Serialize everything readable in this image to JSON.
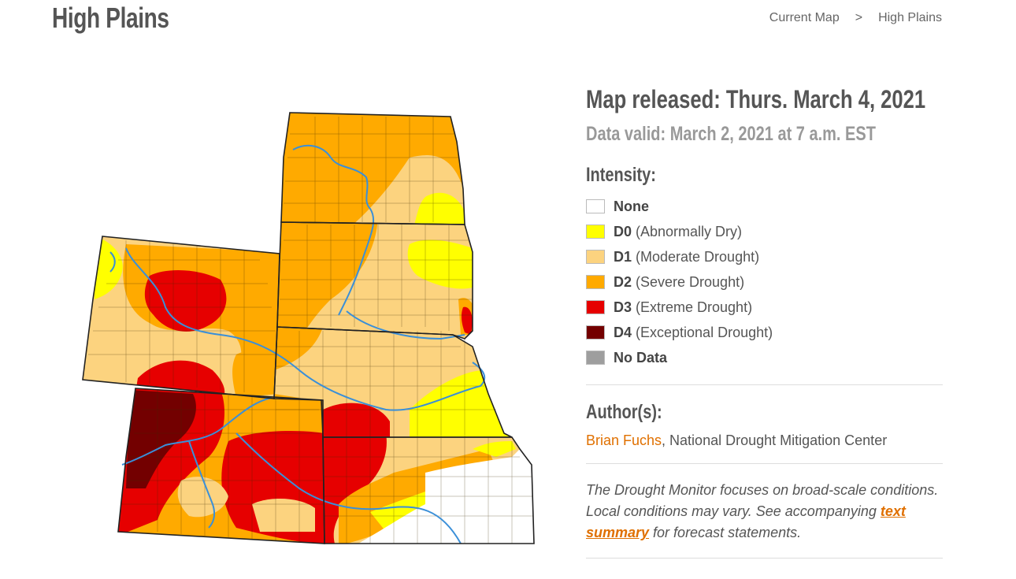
{
  "header": {
    "title": "High Plains",
    "breadcrumb": [
      {
        "label": "Current Map"
      },
      {
        "label": ">"
      },
      {
        "label": "High Plains"
      }
    ]
  },
  "info": {
    "released": "Map released: Thurs. March 4, 2021",
    "valid": "Data valid: March 2, 2021 at 7 a.m. EST",
    "intensity_title": "Intensity:",
    "legend": [
      {
        "code": "None",
        "desc": "",
        "color": "#ffffff"
      },
      {
        "code": "D0",
        "desc": "(Abnormally Dry)",
        "color": "#ffff00"
      },
      {
        "code": "D1",
        "desc": "(Moderate Drought)",
        "color": "#fcd37f"
      },
      {
        "code": "D2",
        "desc": "(Severe Drought)",
        "color": "#ffaa00"
      },
      {
        "code": "D3",
        "desc": "(Extreme Drought)",
        "color": "#e60000"
      },
      {
        "code": "D4",
        "desc": "(Exceptional Drought)",
        "color": "#730000"
      },
      {
        "code": "No Data",
        "desc": "",
        "color": "#9e9e9e"
      }
    ],
    "author_title": "Author(s):",
    "author_name": "Brian Fuchs",
    "author_org": ", National Drought Mitigation Center",
    "note_before": "The Drought Monitor focuses on broad-scale conditions. Local conditions may vary. See accompanying ",
    "note_link": "text summary",
    "note_after": " for forecast statements."
  },
  "map": {
    "region": "High Plains",
    "colors": {
      "none": "#ffffff",
      "d0": "#ffff00",
      "d1": "#fcd37f",
      "d2": "#ffaa00",
      "d3": "#e60000",
      "d4": "#730000",
      "river": "#3a8fd8",
      "border": "#222222"
    }
  }
}
